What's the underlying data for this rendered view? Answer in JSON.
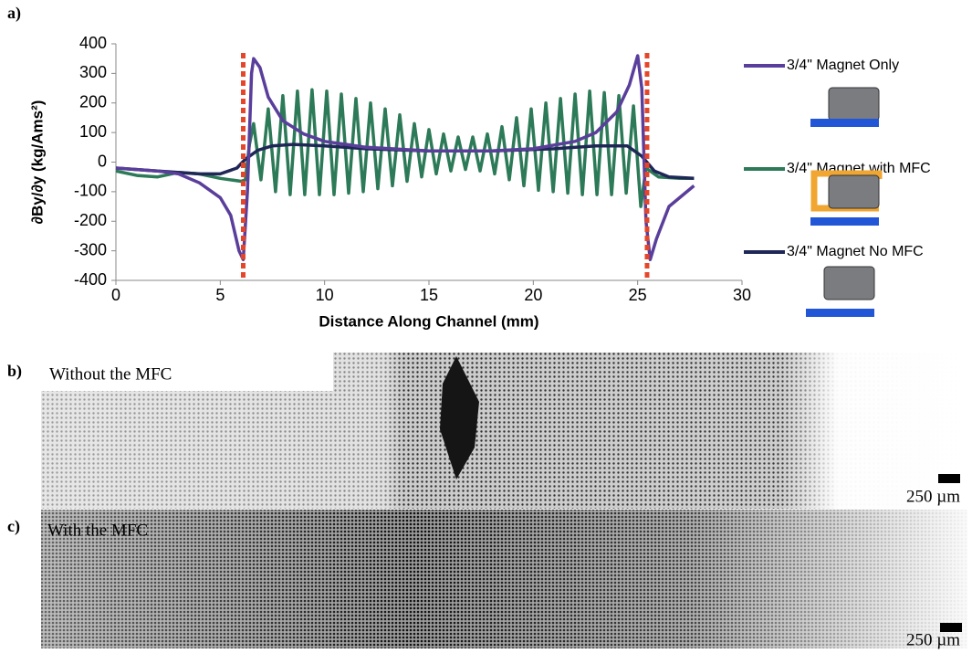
{
  "chart_data": {
    "type": "line",
    "x_label": "Distance Along Channel (mm)",
    "y_label": "∂By/∂y  (kg/Ams²)",
    "xlim": [
      0,
      30
    ],
    "xticks": [
      0,
      5,
      10,
      15,
      20,
      25,
      30
    ],
    "ylim": [
      -400,
      400
    ],
    "yticks": [
      -400,
      -300,
      -200,
      -100,
      0,
      100,
      200,
      300,
      400
    ],
    "reference_lines": {
      "x": [
        6.1,
        25.45
      ],
      "color": "#e5462a"
    },
    "series": [
      {
        "name": "3/4\" Magnet with MFC",
        "color": "#2c7a57",
        "x": [
          0,
          1,
          2,
          3,
          4,
          5,
          6,
          6.2,
          6.4,
          6.6,
          6.95,
          7.3,
          7.65,
          8.0,
          8.35,
          8.7,
          9.05,
          9.4,
          9.75,
          10.1,
          10.45,
          10.8,
          11.15,
          11.5,
          11.85,
          12.2,
          12.55,
          12.9,
          13.25,
          13.6,
          13.95,
          14.3,
          14.65,
          15.0,
          15.35,
          15.7,
          16.05,
          16.4,
          16.75,
          17.1,
          17.45,
          17.8,
          18.15,
          18.5,
          18.85,
          19.2,
          19.55,
          19.9,
          20.25,
          20.6,
          20.95,
          21.3,
          21.65,
          22.0,
          22.35,
          22.7,
          23.05,
          23.4,
          23.75,
          24.1,
          24.45,
          24.8,
          25.15,
          25.4,
          26,
          27,
          27.7
        ],
        "values": [
          -30,
          -45,
          -50,
          -35,
          -40,
          -55,
          -65,
          -60,
          60,
          130,
          -60,
          180,
          -100,
          225,
          -110,
          240,
          -110,
          245,
          -110,
          240,
          -110,
          230,
          -105,
          215,
          -100,
          200,
          -90,
          180,
          -80,
          160,
          -65,
          130,
          -50,
          110,
          -40,
          95,
          -30,
          85,
          -25,
          85,
          -30,
          95,
          -40,
          120,
          -60,
          150,
          -80,
          180,
          -95,
          200,
          -100,
          215,
          -105,
          230,
          -110,
          240,
          -110,
          235,
          -110,
          225,
          -105,
          190,
          -150,
          -20,
          -50,
          -55,
          -55
        ]
      },
      {
        "name": "3/4\" Magnet No MFC",
        "color": "#1f2757",
        "x": [
          0,
          2,
          4,
          5,
          5.8,
          6.2,
          6.8,
          7.5,
          8.5,
          10,
          12,
          15,
          18,
          21,
          23,
          24.5,
          25.2,
          25.8,
          26.5,
          27.7
        ],
        "values": [
          -20,
          -30,
          -40,
          -40,
          -20,
          10,
          40,
          55,
          60,
          55,
          45,
          38,
          38,
          45,
          55,
          55,
          20,
          -30,
          -50,
          -55
        ]
      },
      {
        "name": "3/4\" Magnet Only",
        "color": "#5a3e9b",
        "x": [
          0,
          2,
          3,
          4,
          5,
          5.5,
          5.9,
          6.1,
          6.3,
          6.5,
          6.6,
          6.9,
          7.3,
          8,
          9,
          10,
          12,
          15,
          18,
          20,
          22,
          23,
          24,
          24.6,
          25,
          25.2,
          25.4,
          25.6,
          25.9,
          26.5,
          27.7
        ],
        "values": [
          -20,
          -30,
          -40,
          -70,
          -120,
          -180,
          -300,
          -330,
          -100,
          300,
          350,
          320,
          220,
          140,
          95,
          70,
          50,
          38,
          38,
          45,
          70,
          100,
          170,
          260,
          360,
          250,
          -200,
          -330,
          -260,
          -150,
          -80
        ]
      }
    ]
  },
  "panels": {
    "a": "a)",
    "b": {
      "label": "b)",
      "caption": "Without the MFC",
      "scale_bar": "250 µm"
    },
    "c": {
      "label": "c)",
      "caption": "With the MFC",
      "scale_bar": "250 µm"
    }
  }
}
